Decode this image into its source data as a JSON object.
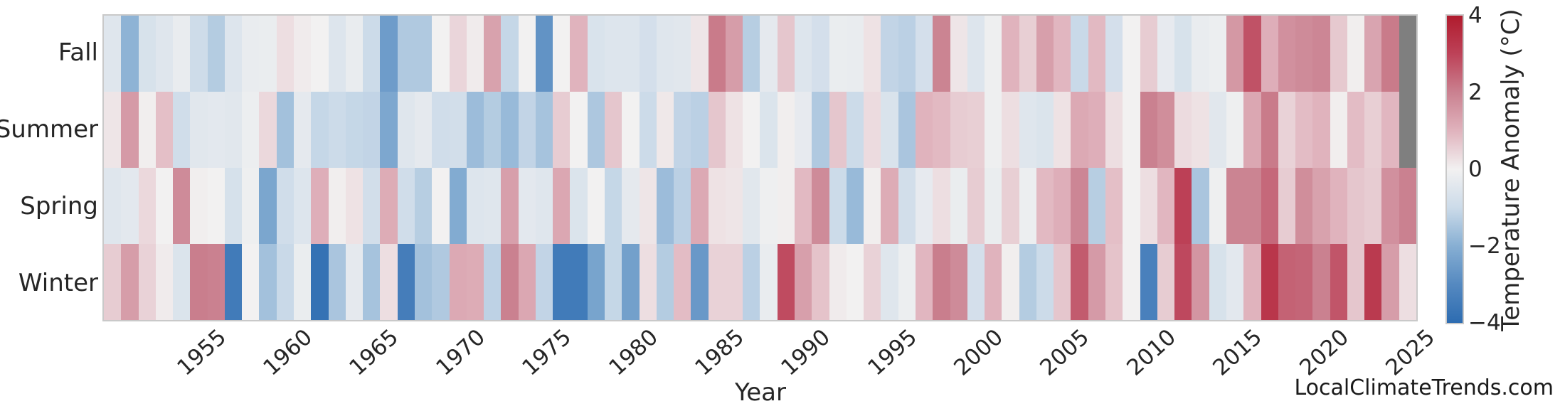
{
  "watermark": "LocalClimateTrends.com",
  "chart_data": {
    "type": "heatmap",
    "xlabel": "Year",
    "rows": [
      "Fall",
      "Summer",
      "Spring",
      "Winter"
    ],
    "year_start": 1950,
    "year_end": 2025,
    "x_tick_labels": [
      "1955",
      "1960",
      "1965",
      "1970",
      "1975",
      "1980",
      "1985",
      "1990",
      "1995",
      "2000",
      "2005",
      "2010",
      "2015",
      "2020",
      "2025"
    ],
    "grid": false,
    "missing_color": "#7f7f7f",
    "colorbar": {
      "label": "Temperature Anomaly (°C)",
      "tick_labels": [
        "4",
        "2",
        "0",
        "−2",
        "−4"
      ],
      "tick_values": [
        4,
        2,
        0,
        -2,
        -4
      ],
      "vmin": -4,
      "vmax": 4,
      "gradient_stops_top_to_bottom": [
        "#b01b2d",
        "#bd4258",
        "#ca8190",
        "#e0b3bd",
        "#f2f1f1",
        "#ccdbe9",
        "#87afd3",
        "#5589c0",
        "#2d6cb1"
      ]
    },
    "series": [
      {
        "name": "Fall",
        "values": [
          -0.5,
          -1.9,
          -0.7,
          -0.5,
          -0.25,
          -0.95,
          -1.35,
          -0.55,
          -0.25,
          -0.2,
          0.3,
          0.1,
          0,
          -0.55,
          -0.25,
          -1,
          -2.5,
          -1.4,
          -1.4,
          0,
          0.45,
          0.1,
          1.35,
          -1.1,
          0,
          -2.75,
          0,
          1,
          -0.65,
          -0.55,
          -0.55,
          -0.8,
          -0.5,
          -0.45,
          0.2,
          2.1,
          1.45,
          -1.3,
          -0.35,
          0.7,
          -0.55,
          -0.8,
          -0.2,
          -0.25,
          0.25,
          -1.15,
          -1.25,
          -0.8,
          1.95,
          0.2,
          -0.55,
          -0.1,
          1,
          0.55,
          1.4,
          0.95,
          -1.05,
          0.9,
          -0.8,
          0,
          0.6,
          -0.3,
          -0.7,
          -0.25,
          -0.15,
          1.55,
          2.75,
          1.1,
          1.7,
          1.8,
          1.9,
          0.65,
          0.05,
          1.3,
          2.1,
          null
        ]
      },
      {
        "name": "Summer",
        "values": [
          0.2,
          1.5,
          0.05,
          0.8,
          -0.9,
          -0.45,
          -0.4,
          -0.45,
          -0.15,
          0.4,
          -1.6,
          -0.35,
          -1.1,
          -1,
          -1.1,
          -1.15,
          -2.2,
          -0.5,
          -0.35,
          -0.9,
          -0.85,
          -1.7,
          -1.35,
          -1.75,
          -1.15,
          -1.55,
          0.6,
          0,
          -1.45,
          0.7,
          0,
          -1,
          0.15,
          -1.15,
          -1.25,
          0.7,
          0.25,
          0,
          -0.6,
          0.05,
          -0.3,
          -1.4,
          0.7,
          -1,
          0.35,
          -0.65,
          -1.5,
          1,
          0.9,
          0.6,
          0.55,
          -0.1,
          0.3,
          -0.5,
          -0.6,
          0.25,
          1.2,
          1.1,
          0.3,
          0,
          2,
          1.75,
          0.35,
          0.25,
          -0.45,
          -0.1,
          1.25,
          2.1,
          0.5,
          0.85,
          1,
          0.05,
          0.85,
          0.55,
          0.95,
          null
        ]
      },
      {
        "name": "Spring",
        "values": [
          -0.5,
          -0.4,
          0.4,
          0,
          1.8,
          0.05,
          0,
          -0.75,
          -0.1,
          -2.25,
          -0.9,
          -0.55,
          1.1,
          0.05,
          0.25,
          -0.85,
          1.15,
          -0.9,
          -1.3,
          0,
          -2.1,
          -0.55,
          -0.5,
          1.4,
          -0.4,
          -0.5,
          1.25,
          -0.6,
          0,
          -1.1,
          -0.35,
          0.2,
          -1.7,
          -1.25,
          1.2,
          0.25,
          0.2,
          -0.45,
          -0.1,
          0.05,
          0.9,
          1.8,
          -1,
          -1.75,
          0.05,
          1.15,
          -0.85,
          -0.3,
          0.3,
          -0.2,
          0.6,
          -0.2,
          0.55,
          -0.15,
          0.9,
          1.1,
          1.9,
          -1.3,
          0.8,
          0,
          0.3,
          0.95,
          3.05,
          -1.5,
          -0.1,
          1.95,
          1.95,
          2.4,
          0.6,
          1.75,
          1.35,
          1,
          0.7,
          0.6,
          1.7,
          2
        ]
      },
      {
        "name": "Winter",
        "values": [
          0.6,
          1.45,
          0.5,
          0.1,
          -0.6,
          2.05,
          2,
          -3.5,
          0,
          -1.6,
          -1.05,
          -0.2,
          -3.8,
          -1.5,
          -0.35,
          -1.55,
          0.3,
          -3.4,
          -1.6,
          -1.4,
          1.2,
          1.15,
          -1.2,
          2,
          1.25,
          -1.15,
          -3.5,
          -3.5,
          -2.3,
          -1.1,
          -2.4,
          0.3,
          -1.35,
          0.85,
          -2.6,
          0.5,
          0.5,
          -1.25,
          -0.25,
          2.85,
          1.4,
          0.75,
          0.1,
          0,
          0.5,
          -0.5,
          -0.15,
          0.95,
          2.05,
          1.8,
          -0.8,
          1,
          0.05,
          -1.35,
          -1,
          0.7,
          2.6,
          1.5,
          0.75,
          0,
          -3.3,
          0.6,
          2.9,
          1.6,
          -0.7,
          -0.4,
          1,
          3.3,
          2.5,
          2.45,
          2,
          2.7,
          0.7,
          3.2,
          1.45,
          0.3
        ]
      }
    ]
  }
}
